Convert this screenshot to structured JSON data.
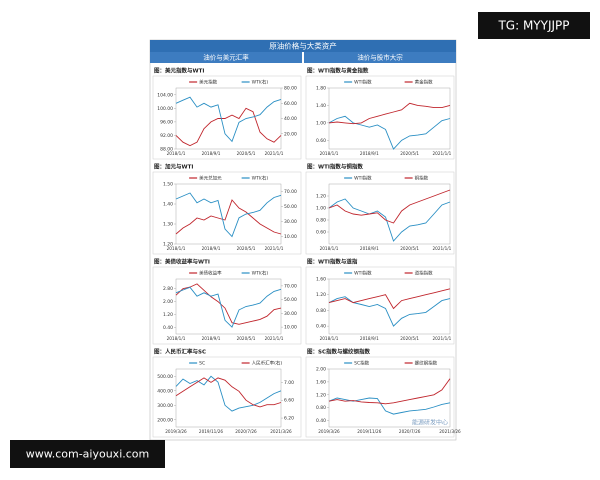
{
  "header": {
    "title": "原油价格与大类资产",
    "left": "油价与美元汇率",
    "right": "油价与股市大宗"
  },
  "badges": {
    "tg": "TG: MYYJJPP",
    "site": "www.com-aiyouxi.com"
  },
  "chart_data": [
    {
      "type": "line",
      "title": "图：美元指数与WTI",
      "categories": [
        "2018/1/1",
        null,
        null,
        null,
        null,
        "2018/9/1",
        null,
        null,
        null,
        null,
        "2020/5/1",
        null,
        null,
        null,
        "2021/1/1",
        null
      ],
      "ylim": [
        88,
        106
      ],
      "yticks": [
        {
          "value": 88,
          "label": "88.00"
        },
        {
          "value": 92,
          "label": "92.00"
        },
        {
          "value": 96,
          "label": "96.00"
        },
        {
          "value": 100,
          "label": "100.00"
        },
        {
          "value": 104,
          "label": "104.00"
        }
      ],
      "y2lim": [
        0,
        80
      ],
      "y2ticks": [
        {
          "value": 20,
          "label": "20.00"
        },
        {
          "value": 40,
          "label": "40.00"
        },
        {
          "value": 60,
          "label": "60.00"
        },
        {
          "value": 80,
          "label": "80.00"
        }
      ],
      "series": [
        {
          "name": "美元指数",
          "color": "#c0262d",
          "values": [
            92,
            90,
            89,
            90,
            94,
            96,
            97,
            97,
            98,
            97,
            100,
            99,
            93,
            91,
            90,
            92
          ]
        },
        {
          "name": "WTI(右)",
          "color": "#2a8fc4",
          "axis": "y2",
          "values": [
            60,
            64,
            68,
            55,
            60,
            55,
            58,
            20,
            10,
            35,
            40,
            42,
            45,
            55,
            62,
            65
          ]
        }
      ]
    },
    {
      "type": "line",
      "title": "图：WTI指数与黄金指数",
      "categories": [
        "2018/1/1",
        null,
        null,
        null,
        null,
        "2018/9/1",
        null,
        null,
        null,
        null,
        "2020/5/1",
        null,
        null,
        null,
        "2021/1/1",
        null
      ],
      "ylim": [
        0.4,
        1.8
      ],
      "yticks": [
        {
          "value": 0.6,
          "label": "0.60"
        },
        {
          "value": 1,
          "label": "1.00"
        },
        {
          "value": 1.4,
          "label": "1.40"
        },
        {
          "value": 1.8,
          "label": "1.80"
        }
      ],
      "series": [
        {
          "name": "WTI指数",
          "color": "#2a8fc4",
          "values": [
            1.0,
            1.1,
            1.15,
            1.0,
            0.95,
            0.9,
            0.95,
            0.85,
            0.4,
            0.6,
            0.7,
            0.72,
            0.75,
            0.9,
            1.05,
            1.1
          ]
        },
        {
          "name": "黄金指数",
          "color": "#c0262d",
          "values": [
            1.0,
            1.02,
            1.0,
            0.98,
            1.0,
            1.1,
            1.15,
            1.2,
            1.25,
            1.3,
            1.45,
            1.4,
            1.38,
            1.35,
            1.35,
            1.4
          ]
        }
      ]
    },
    {
      "type": "line",
      "title": "图：加元与WTI",
      "categories": [
        "2018/1/1",
        null,
        null,
        null,
        null,
        "2018/9/1",
        null,
        null,
        null,
        null,
        "2020/5/1",
        null,
        null,
        null,
        "2021/1/1",
        null
      ],
      "ylim": [
        1.2,
        1.5
      ],
      "yticks": [
        {
          "value": 1.2,
          "label": "1.20"
        },
        {
          "value": 1.3,
          "label": "1.30"
        },
        {
          "value": 1.4,
          "label": "1.40"
        },
        {
          "value": 1.5,
          "label": "1.50"
        }
      ],
      "y2lim": [
        0,
        80
      ],
      "y2ticks": [
        {
          "value": 10,
          "label": "10.00"
        },
        {
          "value": 30,
          "label": "30.00"
        },
        {
          "value": 50,
          "label": "50.00"
        },
        {
          "value": 70,
          "label": "70.00"
        }
      ],
      "series": [
        {
          "name": "美元兑加元",
          "color": "#c0262d",
          "values": [
            1.25,
            1.28,
            1.3,
            1.33,
            1.32,
            1.34,
            1.33,
            1.32,
            1.42,
            1.38,
            1.36,
            1.33,
            1.3,
            1.28,
            1.26,
            1.25
          ]
        },
        {
          "name": "WTI(右)",
          "color": "#2a8fc4",
          "axis": "y2",
          "values": [
            60,
            64,
            68,
            55,
            60,
            55,
            58,
            20,
            10,
            35,
            40,
            42,
            45,
            55,
            62,
            65
          ]
        }
      ]
    },
    {
      "type": "line",
      "title": "图：WTI指数与铜指数",
      "categories": [
        "2018/1/1",
        null,
        null,
        null,
        null,
        "2018/9/1",
        null,
        null,
        null,
        null,
        "2020/5/1",
        null,
        null,
        null,
        "2021/1/1",
        null
      ],
      "ylim": [
        0.4,
        1.4
      ],
      "yticks": [
        {
          "value": 0.6,
          "label": "0.60"
        },
        {
          "value": 0.8,
          "label": "0.80"
        },
        {
          "value": 1,
          "label": "1.00"
        },
        {
          "value": 1.2,
          "label": "1.20"
        }
      ],
      "series": [
        {
          "name": "WTI指数",
          "color": "#2a8fc4",
          "values": [
            1.0,
            1.1,
            1.15,
            1.0,
            0.95,
            0.9,
            0.95,
            0.85,
            0.45,
            0.6,
            0.7,
            0.72,
            0.75,
            0.9,
            1.05,
            1.1
          ]
        },
        {
          "name": "铜指数",
          "color": "#c0262d",
          "values": [
            1.0,
            1.05,
            0.95,
            0.9,
            0.88,
            0.9,
            0.92,
            0.8,
            0.75,
            0.95,
            1.05,
            1.1,
            1.15,
            1.2,
            1.25,
            1.3
          ]
        }
      ]
    },
    {
      "type": "line",
      "title": "图：美债收益率与WTI",
      "categories": [
        "2018/1/1",
        null,
        null,
        null,
        null,
        "2018/9/1",
        null,
        null,
        null,
        null,
        "2020/5/1",
        null,
        null,
        null,
        "2021/1/1",
        null
      ],
      "ylim": [
        0,
        3.4
      ],
      "yticks": [
        {
          "value": 0.4,
          "label": "0.40"
        },
        {
          "value": 1.2,
          "label": "1.20"
        },
        {
          "value": 2,
          "label": "2.00"
        },
        {
          "value": 2.8,
          "label": "2.80"
        }
      ],
      "y2lim": [
        0,
        80
      ],
      "y2ticks": [
        {
          "value": 10,
          "label": "10.00"
        },
        {
          "value": 30,
          "label": "30.00"
        },
        {
          "value": 50,
          "label": "50.00"
        },
        {
          "value": 70,
          "label": "70.00"
        }
      ],
      "series": [
        {
          "name": "美债收益率",
          "color": "#c0262d",
          "values": [
            2.4,
            2.8,
            2.9,
            3.1,
            2.7,
            2.3,
            2.0,
            1.6,
            0.7,
            0.6,
            0.7,
            0.8,
            0.9,
            1.1,
            1.5,
            1.6
          ]
        },
        {
          "name": "WTI(右)",
          "color": "#2a8fc4",
          "axis": "y2",
          "values": [
            60,
            64,
            68,
            55,
            60,
            55,
            58,
            20,
            10,
            35,
            40,
            42,
            45,
            55,
            62,
            65
          ]
        }
      ]
    },
    {
      "type": "line",
      "title": "图：WTI指数与道指",
      "categories": [
        "2018/1/1",
        null,
        null,
        null,
        null,
        "2018/9/1",
        null,
        null,
        null,
        null,
        "2020/5/1",
        null,
        null,
        null,
        "2021/1/1",
        null
      ],
      "ylim": [
        0.2,
        1.6
      ],
      "yticks": [
        {
          "value": 0.4,
          "label": "0.40"
        },
        {
          "value": 0.8,
          "label": "0.80"
        },
        {
          "value": 1.2,
          "label": "1.20"
        },
        {
          "value": 1.6,
          "label": "1.60"
        }
      ],
      "series": [
        {
          "name": "WTI指数",
          "color": "#2a8fc4",
          "values": [
            1.0,
            1.1,
            1.15,
            1.0,
            0.95,
            0.9,
            0.95,
            0.85,
            0.4,
            0.6,
            0.7,
            0.72,
            0.75,
            0.9,
            1.05,
            1.1
          ]
        },
        {
          "name": "道指指数",
          "color": "#c0262d",
          "values": [
            1.0,
            1.05,
            1.1,
            1.0,
            1.05,
            1.1,
            1.15,
            1.2,
            0.85,
            1.05,
            1.1,
            1.15,
            1.2,
            1.25,
            1.3,
            1.35
          ]
        }
      ]
    },
    {
      "type": "line",
      "title": "图：人民币汇率与SC",
      "categories": [
        "2019/3/26",
        null,
        null,
        null,
        null,
        "2019/11/26",
        null,
        null,
        null,
        null,
        "2020/7/26",
        null,
        null,
        null,
        null,
        "2021/3/26"
      ],
      "ylim": [
        150,
        550
      ],
      "yticks": [
        {
          "value": 200,
          "label": "200.00"
        },
        {
          "value": 300,
          "label": "300.00"
        },
        {
          "value": 400,
          "label": "400.00"
        },
        {
          "value": 500,
          "label": "500.00"
        }
      ],
      "y2lim": [
        6,
        7.3
      ],
      "y2ticks": [
        {
          "value": 6.2,
          "label": "6.20"
        },
        {
          "value": 6.6,
          "label": "6.60"
        },
        {
          "value": 7,
          "label": "7.00"
        }
      ],
      "series": [
        {
          "name": "SC",
          "color": "#2a8fc4",
          "values": [
            430,
            480,
            450,
            470,
            440,
            500,
            460,
            300,
            260,
            280,
            290,
            300,
            320,
            350,
            380,
            400
          ]
        },
        {
          "name": "人民币汇率(右)",
          "color": "#c0262d",
          "axis": "y2",
          "values": [
            6.7,
            6.8,
            6.9,
            7.0,
            7.1,
            7.0,
            7.1,
            7.05,
            6.9,
            6.8,
            6.6,
            6.5,
            6.45,
            6.5,
            6.5,
            6.55
          ]
        }
      ]
    },
    {
      "type": "line",
      "title": "图：SC指数与螺纹钢指数",
      "annotation": "能源研发中心",
      "categories": [
        "2019/3/26",
        null,
        null,
        null,
        null,
        "2019/11/26",
        null,
        null,
        null,
        null,
        "2020/7/26",
        null,
        null,
        null,
        null,
        "2021/3/26"
      ],
      "ylim": [
        0.2,
        2.0
      ],
      "yticks": [
        {
          "value": 0.4,
          "label": "0.40"
        },
        {
          "value": 0.8,
          "label": "0.80"
        },
        {
          "value": 1.2,
          "label": "1.20"
        },
        {
          "value": 1.6,
          "label": "1.60"
        },
        {
          "value": 2,
          "label": "2.00"
        }
      ],
      "series": [
        {
          "name": "SC指数",
          "color": "#2a8fc4",
          "values": [
            1.0,
            1.1,
            1.05,
            1.0,
            1.05,
            1.1,
            1.08,
            0.7,
            0.6,
            0.65,
            0.7,
            0.72,
            0.75,
            0.82,
            0.9,
            0.95
          ]
        },
        {
          "name": "螺纹钢指数",
          "color": "#c0262d",
          "values": [
            1.0,
            1.05,
            1.0,
            1.02,
            0.98,
            0.96,
            0.95,
            0.92,
            0.95,
            1.0,
            1.05,
            1.1,
            1.15,
            1.2,
            1.35,
            1.7
          ]
        }
      ]
    }
  ]
}
